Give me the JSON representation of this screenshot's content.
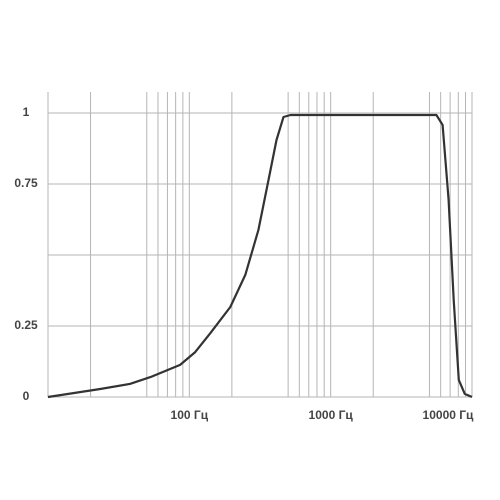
{
  "chart_data": {
    "type": "line",
    "log_x": true,
    "grid": true,
    "color": "#333333",
    "xlim": [
      10,
      10000
    ],
    "ylim": [
      0,
      1.074
    ],
    "xticks": [
      {
        "value": 100,
        "label": "100 Гц"
      },
      {
        "value": 1000,
        "label": "1000 Гц"
      },
      {
        "value": 10000,
        "label": "10000 Гц"
      }
    ],
    "xgrid": [
      10,
      20,
      50,
      60,
      70,
      80,
      90,
      100,
      200,
      500,
      600,
      700,
      800,
      900,
      1000,
      2000,
      5000,
      6000,
      7000,
      8000,
      9000,
      10000
    ],
    "yticks": [
      0,
      0.25,
      0.75,
      1
    ],
    "ygrid": [
      0,
      0.25,
      0.5,
      0.75,
      1
    ],
    "x": [
      10,
      23.4,
      38,
      53,
      86,
      110,
      141,
      195,
      249,
      308,
      363,
      414,
      464,
      520,
      5600,
      6190,
      6830,
      7420,
      8060,
      8900,
      10000
    ],
    "values": [
      0,
      0.028,
      0.046,
      0.07,
      0.113,
      0.158,
      0.225,
      0.317,
      0.43,
      0.588,
      0.764,
      0.905,
      0.986,
      0.993,
      0.993,
      0.958,
      0.694,
      0.342,
      0.06,
      0.011,
      0
    ]
  }
}
